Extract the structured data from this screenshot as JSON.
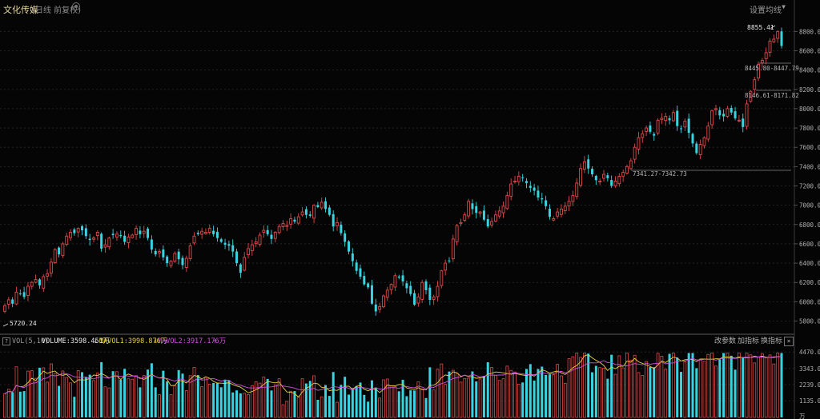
{
  "header": {
    "title": "文化传媒",
    "subtitle": "(日线 前复权)",
    "settings_label": "设置均线"
  },
  "chart_data": {
    "type": "candlestick",
    "price_axis": {
      "ticks": [
        "8800.00",
        "8600.00",
        "8400.00",
        "8200.00",
        "8000.00",
        "7800.00",
        "7600.00",
        "7400.00",
        "7200.00",
        "7000.00",
        "6800.00",
        "6600.00",
        "6400.00",
        "6200.00",
        "6000.00",
        "5800.00"
      ],
      "range": [
        5680,
        8960
      ]
    },
    "volume_axis": {
      "ticks": [
        "4470.00",
        "3343.00",
        "2239.00",
        "1135.00",
        "万"
      ],
      "range": [
        0,
        4700
      ]
    },
    "annotations": {
      "high": "8855.41",
      "low": "5720.24",
      "gap1": "8445.80-8447.79",
      "gap2": "8146.61-8171.82",
      "gap3": "7341.27-7342.73"
    },
    "volume_legend": {
      "name": "VOL(5,10)",
      "volume": "VOLUME:3598.451万",
      "ma1": "MAVOL1:3998.876万",
      "ma2": "MAVOL2:3917.176万",
      "btn_params": "改参数",
      "btn_add": "加指标",
      "btn_switch": "换指标"
    },
    "closes": [
      5960,
      6020,
      5980,
      6100,
      6080,
      6050,
      6160,
      6200,
      6230,
      6170,
      6260,
      6290,
      6410,
      6540,
      6490,
      6600,
      6680,
      6720,
      6710,
      6760,
      6740,
      6680,
      6640,
      6660,
      6720,
      6550,
      6590,
      6660,
      6690,
      6700,
      6680,
      6620,
      6670,
      6690,
      6760,
      6700,
      6730,
      6660,
      6540,
      6490,
      6520,
      6460,
      6400,
      6420,
      6500,
      6440,
      6380,
      6450,
      6580,
      6680,
      6700,
      6730,
      6720,
      6760,
      6700,
      6660,
      6620,
      6590,
      6580,
      6520,
      6400,
      6300,
      6460,
      6550,
      6590,
      6620,
      6690,
      6740,
      6700,
      6650,
      6720,
      6780,
      6810,
      6790,
      6860,
      6830,
      6880,
      6930,
      6900,
      6890,
      7000,
      6980,
      7030,
      6960,
      6900,
      6780,
      6820,
      6710,
      6620,
      6520,
      6420,
      6320,
      6260,
      6180,
      6150,
      5980,
      5900,
      5950,
      6060,
      6120,
      6180,
      6270,
      6250,
      6210,
      6140,
      6080,
      5970,
      6050,
      6200,
      6120,
      6020,
      6050,
      6160,
      6320,
      6400,
      6420,
      6650,
      6790,
      6820,
      6900,
      7040,
      6960,
      6920,
      6930,
      6850,
      6780,
      6830,
      6900,
      6940,
      6990,
      7100,
      7220,
      7250,
      7300,
      7280,
      7230,
      7180,
      7150,
      7080,
      7060,
      6990,
      6880,
      6860,
      6930,
      6960,
      6990,
      7040,
      7100,
      7230,
      7380,
      7450,
      7380,
      7320,
      7260,
      7250,
      7320,
      7280,
      7200,
      7250,
      7300,
      7340,
      7400,
      7460,
      7600,
      7700,
      7740,
      7800,
      7760,
      7720,
      7880,
      7900,
      7920,
      7880,
      7960,
      7820,
      7790,
      7870,
      7750,
      7640,
      7540,
      7630,
      7700,
      7820,
      7980,
      8000,
      7930,
      7920,
      8000,
      7960,
      7900,
      7880,
      7810,
      8050,
      8180,
      8300,
      8460,
      8500,
      8580,
      8700,
      8720,
      8800,
      8650
    ]
  }
}
